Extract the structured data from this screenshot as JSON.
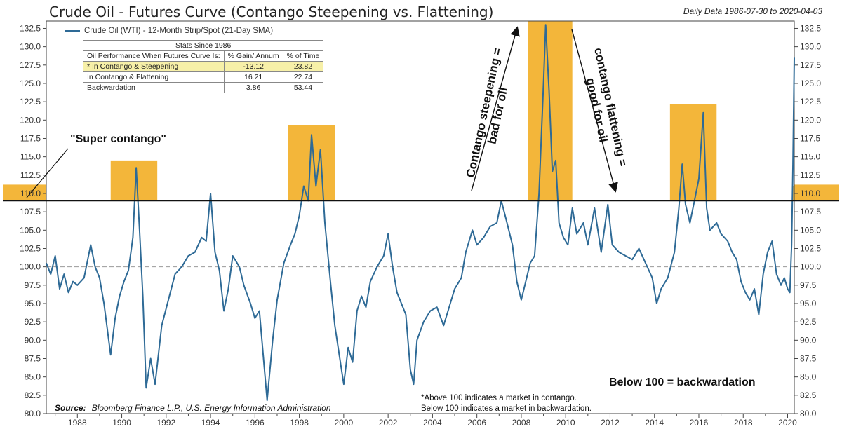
{
  "title": "Crude Oil - Futures Curve (Contango Steepening vs. Flattening)",
  "date_range": "Daily Data 1986-07-30 to 2020-04-03",
  "legend_label": "Crude Oil (WTI) - 12-Month Strip/Spot (21-Day SMA)",
  "annotations": {
    "super_contango": "\"Super contango\"",
    "steepening": "Contango steepening = bad for oil",
    "flattening": "contango flattening = good for oil",
    "backwardation": "Below 100 = backwardation",
    "note_line1": "*Above 100 indicates a market in contango.",
    "note_line2": "Below 100 indicates a market in backwardation."
  },
  "source_label": "Source:",
  "source_text": "Bloomberg Finance L.P., U.S. Energy Information Administration",
  "stats_table": {
    "caption": "Stats Since 1986",
    "headers": [
      "Oil Performance When Futures Curve Is:",
      "% Gain/ Annum",
      "% of Time"
    ],
    "rows": [
      {
        "label": "* In Contango & Steepening",
        "gain": "-13.12",
        "time": "23.82"
      },
      {
        "label": "In Contango & Flattening",
        "gain": "16.21",
        "time": "22.74"
      },
      {
        "label": "Backwardation",
        "gain": "3.86",
        "time": "53.44"
      }
    ]
  },
  "chart_data": {
    "type": "line",
    "xlim": [
      1986.6,
      2020.3
    ],
    "ylim": [
      80.0,
      133.5
    ],
    "x_ticks": [
      1988,
      1990,
      1992,
      1994,
      1996,
      1998,
      2000,
      2002,
      2004,
      2006,
      2008,
      2010,
      2012,
      2014,
      2016,
      2018,
      2020
    ],
    "y_ticks": [
      80.0,
      82.5,
      85.0,
      87.5,
      90.0,
      92.5,
      95.0,
      97.5,
      100.0,
      102.5,
      105.0,
      107.5,
      110.0,
      112.5,
      115.0,
      117.5,
      120.0,
      122.5,
      125.0,
      127.5,
      130.0,
      132.5
    ],
    "threshold": 109,
    "reference_line": 100,
    "grid": false,
    "legend_position": "top-left",
    "colors": {
      "line": "#2e6a96",
      "highlight": "#f3b63a",
      "threshold": "#111111",
      "reference": "#999999"
    },
    "highlights": [
      {
        "x0": 1989.5,
        "x1": 1991.6,
        "ymax": 114.5
      },
      {
        "x0": 1997.5,
        "x1": 1999.6,
        "ymax": 119.3
      },
      {
        "x0": 2008.3,
        "x1": 2010.3,
        "ymax": 133.5
      },
      {
        "x0": 2014.7,
        "x1": 2016.8,
        "ymax": 122.2
      },
      {
        "x0": 2020.2,
        "x1": 2020.3,
        "ymax": 111.0
      }
    ],
    "series": [
      {
        "name": "Crude Oil (WTI) - 12-Month Strip/Spot (21-Day SMA)",
        "points": [
          [
            1986.6,
            100.5
          ],
          [
            1986.8,
            99.0
          ],
          [
            1987.0,
            101.5
          ],
          [
            1987.2,
            97.0
          ],
          [
            1987.4,
            99.0
          ],
          [
            1987.6,
            96.5
          ],
          [
            1987.8,
            98.0
          ],
          [
            1988.0,
            97.5
          ],
          [
            1988.3,
            98.5
          ],
          [
            1988.6,
            103.0
          ],
          [
            1988.8,
            100.0
          ],
          [
            1989.0,
            98.5
          ],
          [
            1989.2,
            95.0
          ],
          [
            1989.5,
            88.0
          ],
          [
            1989.7,
            93.0
          ],
          [
            1989.9,
            96.0
          ],
          [
            1990.1,
            98.0
          ],
          [
            1990.3,
            99.5
          ],
          [
            1990.5,
            104.0
          ],
          [
            1990.65,
            113.5
          ],
          [
            1990.8,
            105.0
          ],
          [
            1990.95,
            96.0
          ],
          [
            1991.1,
            83.5
          ],
          [
            1991.3,
            87.5
          ],
          [
            1991.5,
            84.0
          ],
          [
            1991.8,
            92.0
          ],
          [
            1992.1,
            95.5
          ],
          [
            1992.4,
            99.0
          ],
          [
            1992.7,
            100.0
          ],
          [
            1993.0,
            101.5
          ],
          [
            1993.3,
            102.0
          ],
          [
            1993.6,
            104.0
          ],
          [
            1993.8,
            103.5
          ],
          [
            1994.0,
            110.0
          ],
          [
            1994.2,
            102.0
          ],
          [
            1994.4,
            99.5
          ],
          [
            1994.6,
            94.0
          ],
          [
            1994.8,
            97.0
          ],
          [
            1995.0,
            101.5
          ],
          [
            1995.3,
            100.0
          ],
          [
            1995.5,
            97.5
          ],
          [
            1995.8,
            95.0
          ],
          [
            1996.0,
            93.0
          ],
          [
            1996.2,
            94.0
          ],
          [
            1996.4,
            87.0
          ],
          [
            1996.55,
            81.8
          ],
          [
            1996.8,
            90.0
          ],
          [
            1997.0,
            95.5
          ],
          [
            1997.3,
            100.5
          ],
          [
            1997.6,
            103.0
          ],
          [
            1997.8,
            104.5
          ],
          [
            1998.0,
            107.0
          ],
          [
            1998.2,
            111.0
          ],
          [
            1998.4,
            109.0
          ],
          [
            1998.55,
            118.0
          ],
          [
            1998.75,
            111.0
          ],
          [
            1998.95,
            116.0
          ],
          [
            1999.15,
            106.0
          ],
          [
            1999.4,
            98.0
          ],
          [
            1999.6,
            92.0
          ],
          [
            1999.8,
            88.0
          ],
          [
            2000.0,
            84.0
          ],
          [
            2000.2,
            89.0
          ],
          [
            2000.4,
            87.0
          ],
          [
            2000.6,
            94.0
          ],
          [
            2000.8,
            96.0
          ],
          [
            2001.0,
            94.5
          ],
          [
            2001.2,
            98.0
          ],
          [
            2001.5,
            100.0
          ],
          [
            2001.8,
            101.5
          ],
          [
            2002.0,
            104.5
          ],
          [
            2002.2,
            100.0
          ],
          [
            2002.4,
            96.5
          ],
          [
            2002.6,
            95.0
          ],
          [
            2002.8,
            93.5
          ],
          [
            2003.0,
            86.0
          ],
          [
            2003.15,
            84.0
          ],
          [
            2003.3,
            90.0
          ],
          [
            2003.6,
            92.5
          ],
          [
            2003.9,
            94.0
          ],
          [
            2004.2,
            94.5
          ],
          [
            2004.5,
            92.0
          ],
          [
            2004.8,
            95.0
          ],
          [
            2005.0,
            97.0
          ],
          [
            2005.3,
            98.5
          ],
          [
            2005.5,
            102.0
          ],
          [
            2005.8,
            105.0
          ],
          [
            2006.0,
            103.0
          ],
          [
            2006.3,
            104.0
          ],
          [
            2006.6,
            105.5
          ],
          [
            2006.9,
            106.0
          ],
          [
            2007.1,
            109.0
          ],
          [
            2007.4,
            105.5
          ],
          [
            2007.6,
            103.0
          ],
          [
            2007.8,
            98.0
          ],
          [
            2008.0,
            95.5
          ],
          [
            2008.2,
            98.0
          ],
          [
            2008.4,
            100.5
          ],
          [
            2008.6,
            101.5
          ],
          [
            2008.8,
            110.0
          ],
          [
            2009.0,
            125.0
          ],
          [
            2009.1,
            133.0
          ],
          [
            2009.25,
            124.0
          ],
          [
            2009.4,
            113.0
          ],
          [
            2009.55,
            114.5
          ],
          [
            2009.7,
            106.0
          ],
          [
            2009.9,
            104.0
          ],
          [
            2010.1,
            103.0
          ],
          [
            2010.3,
            108.0
          ],
          [
            2010.5,
            104.5
          ],
          [
            2010.8,
            106.0
          ],
          [
            2011.0,
            103.0
          ],
          [
            2011.3,
            108.0
          ],
          [
            2011.6,
            102.0
          ],
          [
            2011.9,
            108.5
          ],
          [
            2012.1,
            103.0
          ],
          [
            2012.4,
            102.0
          ],
          [
            2012.7,
            101.5
          ],
          [
            2013.0,
            101.0
          ],
          [
            2013.3,
            102.5
          ],
          [
            2013.6,
            100.5
          ],
          [
            2013.9,
            98.5
          ],
          [
            2014.1,
            95.0
          ],
          [
            2014.3,
            97.0
          ],
          [
            2014.6,
            98.5
          ],
          [
            2014.9,
            102.0
          ],
          [
            2015.1,
            108.0
          ],
          [
            2015.25,
            114.0
          ],
          [
            2015.4,
            108.5
          ],
          [
            2015.6,
            106.0
          ],
          [
            2015.8,
            109.0
          ],
          [
            2016.0,
            112.0
          ],
          [
            2016.2,
            121.0
          ],
          [
            2016.35,
            108.0
          ],
          [
            2016.5,
            105.0
          ],
          [
            2016.8,
            106.0
          ],
          [
            2017.0,
            104.5
          ],
          [
            2017.3,
            103.5
          ],
          [
            2017.5,
            102.0
          ],
          [
            2017.7,
            101.0
          ],
          [
            2017.9,
            98.0
          ],
          [
            2018.1,
            96.5
          ],
          [
            2018.3,
            95.5
          ],
          [
            2018.5,
            97.0
          ],
          [
            2018.7,
            93.5
          ],
          [
            2018.9,
            99.0
          ],
          [
            2019.1,
            102.0
          ],
          [
            2019.3,
            103.5
          ],
          [
            2019.5,
            99.0
          ],
          [
            2019.7,
            97.5
          ],
          [
            2019.85,
            98.5
          ],
          [
            2020.0,
            97.0
          ],
          [
            2020.1,
            96.5
          ],
          [
            2020.18,
            103.0
          ],
          [
            2020.24,
            114.0
          ],
          [
            2020.3,
            128.5
          ]
        ]
      }
    ]
  }
}
